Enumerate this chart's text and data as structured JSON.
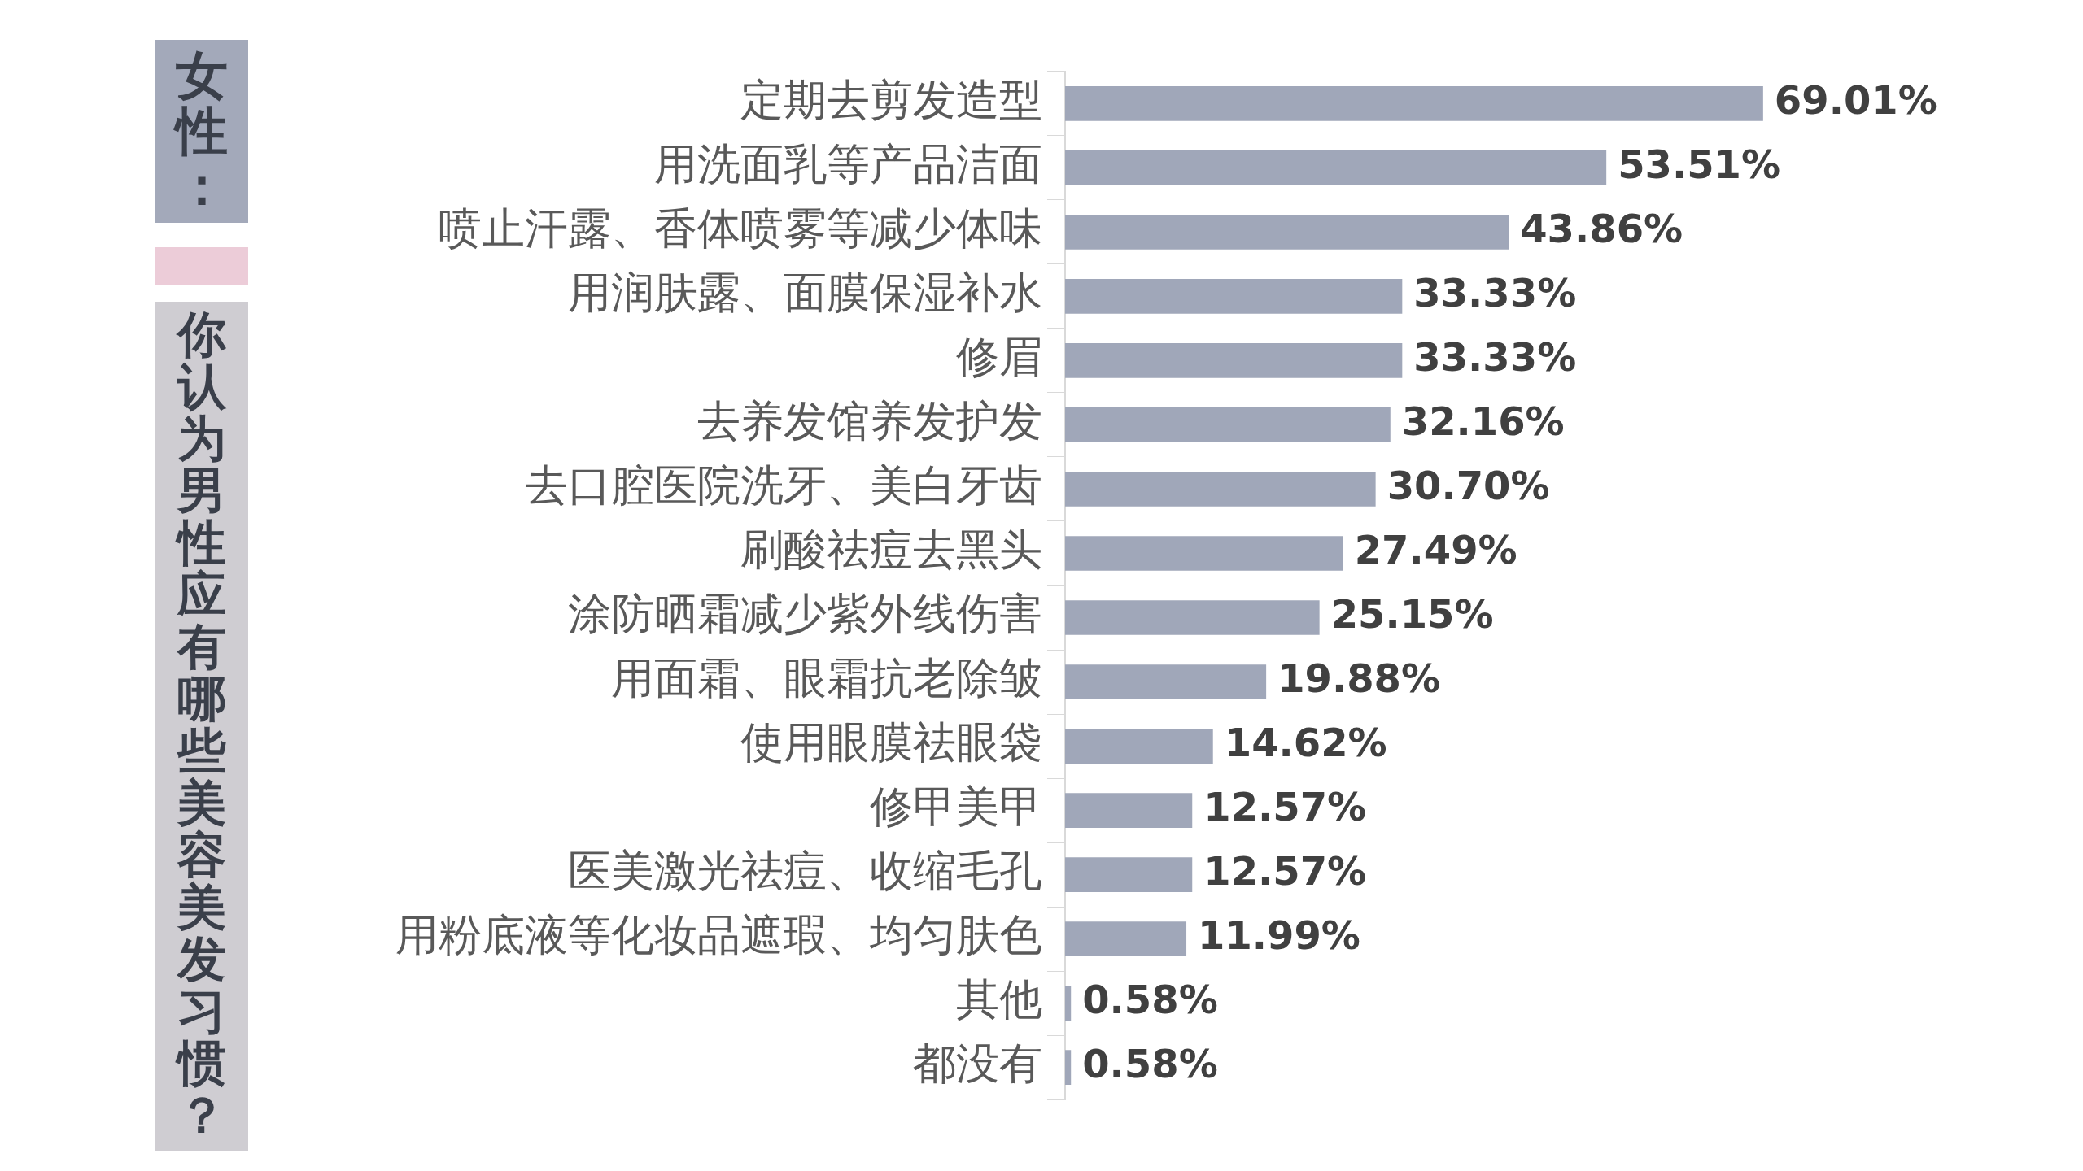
{
  "chart_data": {
    "type": "bar",
    "orientation": "horizontal",
    "title": "女性：",
    "subtitle": "你认为男性应有哪些美容美发习惯？",
    "categories": [
      "定期去剪发造型",
      "用洗面乳等产品洁面",
      "喷止汗露、香体喷雾等减少体味",
      "用润肤露、面膜保湿补水",
      "修眉",
      "去养发馆养发护发",
      "去口腔医院洗牙、美白牙齿",
      "刷酸祛痘去黑头",
      "涂防晒霜减少紫外线伤害",
      "用面霜、眼霜抗老除皱",
      "使用眼膜祛眼袋",
      "修甲美甲",
      "医美激光祛痘、收缩毛孔",
      "用粉底液等化妆品遮瑕、均匀肤色",
      "其他",
      "都没有"
    ],
    "values": [
      69.01,
      53.51,
      43.86,
      33.33,
      33.33,
      32.16,
      30.7,
      27.49,
      25.15,
      19.88,
      14.62,
      12.57,
      12.57,
      11.99,
      0.58,
      0.58
    ],
    "value_labels": [
      "69.01%",
      "53.51%",
      "43.86%",
      "33.33%",
      "33.33%",
      "32.16%",
      "30.70%",
      "27.49%",
      "25.15%",
      "19.88%",
      "14.62%",
      "12.57%",
      "12.57%",
      "11.99%",
      "0.58%",
      "0.58%"
    ],
    "color": "#a0a7b9",
    "legend": false,
    "grid": false
  }
}
